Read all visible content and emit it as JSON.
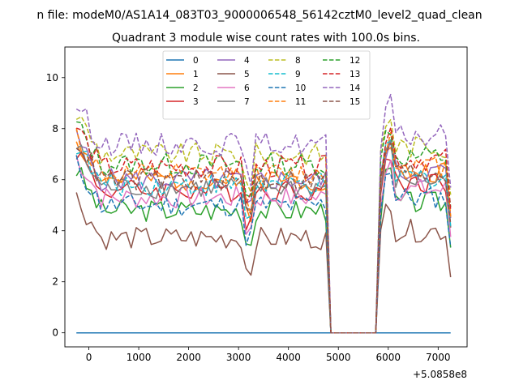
{
  "suptitle": "n file: modeM0/AS1A14_083T03_9000006548_56142cztM0_level2_quad_clean",
  "chart_data": {
    "type": "line",
    "title": "Quadrant 3 module wise count rates with 100.0s bins.",
    "xlabel": "",
    "ylabel": "",
    "x_offset_label": "+5.0858e8",
    "xlim": [
      -480,
      7580
    ],
    "ylim": [
      -0.55,
      11.2
    ],
    "xticks": [
      0,
      1000,
      2000,
      3000,
      4000,
      5000,
      6000,
      7000
    ],
    "xtick_labels": [
      "0",
      "1000",
      "2000",
      "3000",
      "4000",
      "5000",
      "6000",
      "7000"
    ],
    "yticks": [
      0,
      2,
      4,
      6,
      8,
      10
    ],
    "ytick_labels": [
      "0",
      "2",
      "4",
      "6",
      "8",
      "10"
    ],
    "grid": false,
    "legend_position": "top-center",
    "legend_columns": 4,
    "x_start": -250,
    "x_step": 100,
    "series": [
      {
        "name": "0",
        "color": "#1f77b4",
        "dash": "solid",
        "base": 0.0,
        "seed": 1
      },
      {
        "name": "1",
        "color": "#ff7f0e",
        "dash": "solid",
        "base": 6.0,
        "seed": 2
      },
      {
        "name": "2",
        "color": "#2ca02c",
        "dash": "solid",
        "base": 4.8,
        "seed": 3
      },
      {
        "name": "3",
        "color": "#d62728",
        "dash": "solid",
        "base": 5.6,
        "seed": 4
      },
      {
        "name": "4",
        "color": "#9467bd",
        "dash": "solid",
        "base": 6.0,
        "seed": 5
      },
      {
        "name": "5",
        "color": "#8c564b",
        "dash": "solid",
        "base": 3.7,
        "seed": 6
      },
      {
        "name": "6",
        "color": "#e377c2",
        "dash": "solid",
        "base": 5.3,
        "seed": 7
      },
      {
        "name": "7",
        "color": "#7f7f7f",
        "dash": "solid",
        "base": 5.7,
        "seed": 8
      },
      {
        "name": "8",
        "color": "#bcbd22",
        "dash": "dashed",
        "base": 7.0,
        "seed": 9
      },
      {
        "name": "9",
        "color": "#17becf",
        "dash": "dashed",
        "base": 5.8,
        "seed": 10
      },
      {
        "name": "10",
        "color": "#1f77b4",
        "dash": "dashed",
        "base": 5.0,
        "seed": 11
      },
      {
        "name": "11",
        "color": "#ff7f0e",
        "dash": "dashed",
        "base": 6.2,
        "seed": 12
      },
      {
        "name": "12",
        "color": "#2ca02c",
        "dash": "dashed",
        "base": 6.6,
        "seed": 13
      },
      {
        "name": "13",
        "color": "#d62728",
        "dash": "dashed",
        "base": 6.5,
        "seed": 14
      },
      {
        "name": "14",
        "color": "#9467bd",
        "dash": "dashed",
        "base": 7.4,
        "seed": 15
      },
      {
        "name": "15",
        "color": "#8c564b",
        "dash": "dashed",
        "base": 6.0,
        "seed": 16
      }
    ]
  }
}
